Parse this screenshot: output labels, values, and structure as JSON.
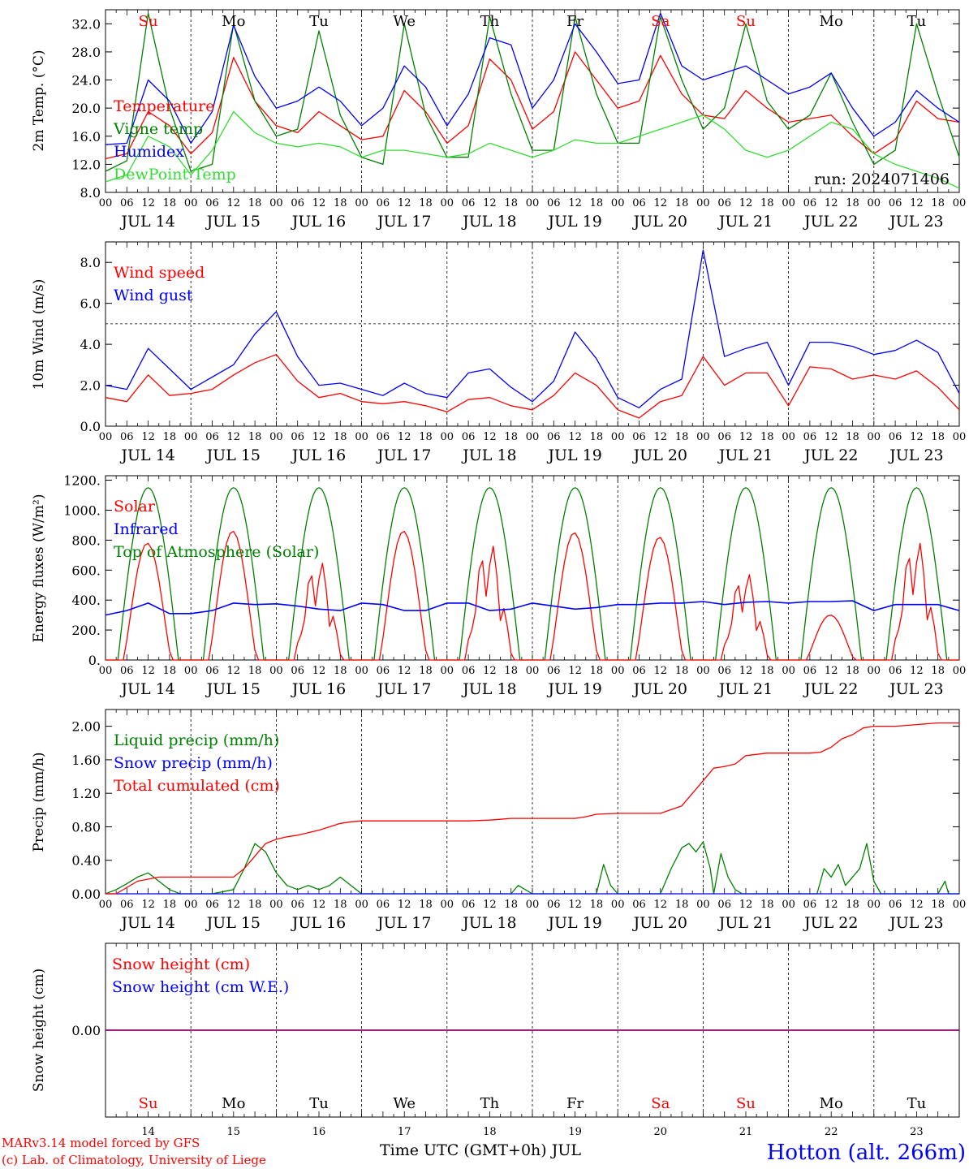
{
  "station": "Hotton (alt. 266m)",
  "credits": [
    "MARv3.14 model forced by GFS",
    "(c) Lab. of Climatology, University of Liege"
  ],
  "run_label": "run: 2024071406",
  "x_axis": {
    "dates": [
      "JUL 14",
      "JUL 15",
      "JUL 16",
      "JUL 17",
      "JUL 18",
      "JUL 19",
      "JUL 20",
      "JUL 21",
      "JUL 22",
      "JUL 23"
    ],
    "hour_ticks": [
      "00",
      "06",
      "12",
      "18"
    ],
    "last_tick": "00",
    "weekdays": [
      "Su",
      "Mo",
      "Tu",
      "We",
      "Th",
      "Fr",
      "Sa",
      "Su",
      "Mo",
      "Tu"
    ],
    "weekend_flags": [
      true,
      false,
      false,
      false,
      false,
      false,
      true,
      true,
      false,
      false
    ],
    "day_numbers": [
      "14",
      "15",
      "16",
      "17",
      "18",
      "19",
      "20",
      "21",
      "22",
      "23"
    ],
    "title": "Time UTC (GMT+0h) JUL"
  },
  "colors": {
    "red": "#ff0000",
    "green": "#008000",
    "blue": "#0000ff",
    "lightgreen": "#33dd33",
    "purple": "#800080",
    "grid": "#000000"
  },
  "chart_data": [
    {
      "type": "line",
      "ylabel": "2m Temp. (°C)",
      "ylim": [
        8,
        34
      ],
      "yticks": [
        "8.0",
        "12.0",
        "16.0",
        "20.0",
        "24.0",
        "28.0",
        "32.0"
      ],
      "ytick_values": [
        8,
        12,
        16,
        20,
        24,
        28,
        32
      ],
      "x_hours": [
        0,
        6,
        12,
        18,
        24,
        30,
        36,
        42,
        48,
        54,
        60,
        66,
        72,
        78,
        84,
        90,
        96,
        102,
        108,
        114,
        120,
        126,
        132,
        138,
        144,
        150,
        156,
        162,
        168,
        174,
        180,
        186,
        192,
        198,
        204,
        210,
        216,
        222,
        228,
        234,
        240
      ],
      "series": [
        {
          "name": "Temperature",
          "color": "red",
          "values": [
            12.8,
            13.5,
            19.5,
            17.5,
            13.5,
            16.5,
            27.2,
            21,
            17.5,
            16.5,
            19.5,
            17.5,
            15.5,
            16,
            22.5,
            19.5,
            15,
            17.5,
            27,
            24,
            17,
            19.5,
            28,
            24,
            20,
            21,
            27.5,
            22,
            19,
            18.5,
            22.5,
            20,
            18,
            18.5,
            19,
            16,
            13.5,
            15.5,
            21,
            18.5,
            18
          ]
        },
        {
          "name": "Vigne temp",
          "color": "green",
          "values": [
            11,
            12.5,
            33.5,
            20,
            11,
            12,
            32,
            21,
            16,
            17,
            31,
            19,
            13,
            12,
            32,
            19,
            13,
            13,
            33,
            22,
            14,
            14,
            33,
            22,
            15,
            15,
            33,
            24,
            17,
            20,
            32,
            21,
            17,
            19,
            25,
            18,
            12,
            14,
            32,
            22,
            13
          ]
        },
        {
          "name": "Humidex",
          "color": "blue",
          "values": [
            14.8,
            15,
            24,
            21,
            15,
            19.5,
            31.8,
            24.5,
            20,
            21,
            23,
            21,
            17.5,
            20,
            26,
            23,
            17.5,
            22,
            30,
            29,
            20,
            24,
            32,
            28,
            23.5,
            24,
            33.5,
            26,
            24,
            25,
            26,
            24,
            22,
            23,
            25,
            20,
            16,
            18,
            22.5,
            20,
            18
          ]
        },
        {
          "name": "DewPoint Temp",
          "color": "lightgreen",
          "values": [
            9.5,
            10.5,
            16,
            14.5,
            10.5,
            14,
            19.5,
            16.5,
            15,
            14.5,
            15,
            14.5,
            13,
            14,
            14,
            13.5,
            13,
            13.5,
            15,
            14,
            13,
            14,
            15.5,
            15,
            15,
            16,
            17,
            18,
            19,
            17,
            14,
            13,
            14,
            16,
            18,
            17,
            13.5,
            12,
            11,
            10,
            8.6
          ]
        }
      ],
      "annotation": "run: 2024071406"
    },
    {
      "type": "line",
      "ylabel": "10m Wind (m/s)",
      "ylim": [
        0,
        9
      ],
      "yticks": [
        "0.0",
        "2.0",
        "4.0",
        "6.0",
        "8.0"
      ],
      "ytick_values": [
        0,
        2,
        4,
        6,
        8
      ],
      "reference_line": 5,
      "x_hours": [
        0,
        6,
        12,
        18,
        24,
        30,
        36,
        42,
        48,
        54,
        60,
        66,
        72,
        78,
        84,
        90,
        96,
        102,
        108,
        114,
        120,
        126,
        132,
        138,
        144,
        150,
        156,
        162,
        168,
        174,
        180,
        186,
        192,
        198,
        204,
        210,
        216,
        222,
        228,
        234,
        240
      ],
      "series": [
        {
          "name": "Wind speed",
          "color": "red",
          "values": [
            1.4,
            1.2,
            2.5,
            1.5,
            1.6,
            1.8,
            2.5,
            3.1,
            3.5,
            2.2,
            1.4,
            1.6,
            1.2,
            1.1,
            1.2,
            1.0,
            0.7,
            1.3,
            1.4,
            1.0,
            0.8,
            1.5,
            2.6,
            2.0,
            0.8,
            0.4,
            1.2,
            1.5,
            3.4,
            2.0,
            2.6,
            2.6,
            1.0,
            2.9,
            2.8,
            2.3,
            2.5,
            2.3,
            2.7,
            1.9,
            0.8
          ]
        },
        {
          "name": "Wind gust",
          "color": "blue",
          "values": [
            2.0,
            1.8,
            3.8,
            2.8,
            1.8,
            2.4,
            3.0,
            4.5,
            5.6,
            3.4,
            2.0,
            2.1,
            1.8,
            1.5,
            2.1,
            1.6,
            1.4,
            2.6,
            2.8,
            1.9,
            1.2,
            2.2,
            4.6,
            3.3,
            1.4,
            0.9,
            1.8,
            2.3,
            8.6,
            3.4,
            3.8,
            4.1,
            2.0,
            4.1,
            4.1,
            3.9,
            3.5,
            3.7,
            4.2,
            3.6,
            1.6
          ]
        }
      ]
    },
    {
      "type": "line",
      "ylabel": "Energy fluxes (W/m²)",
      "ylim": [
        0,
        1230
      ],
      "yticks": [
        "0.",
        "200.",
        "400.",
        "600.",
        "800.",
        "1000.",
        "1200."
      ],
      "ytick_values": [
        0,
        200,
        400,
        600,
        800,
        1000,
        1200
      ],
      "solar_peaks": [
        780,
        860,
        680,
        860,
        800,
        850,
        820,
        600,
        300,
        820
      ],
      "infrared_values": [
        300,
        330,
        380,
        310,
        310,
        330,
        380,
        370,
        375,
        360,
        340,
        330,
        380,
        370,
        330,
        330,
        380,
        380,
        330,
        340,
        380,
        360,
        340,
        350,
        370,
        370,
        380,
        380,
        390,
        370,
        385,
        390,
        380,
        390,
        390,
        395,
        330,
        370,
        370,
        370,
        330
      ],
      "toa_peak": 1150,
      "toa_sunrise_hour": 3.5,
      "toa_sunset_hour": 20.5,
      "series": [
        {
          "name": "Solar",
          "color": "red"
        },
        {
          "name": "Infrared",
          "color": "blue"
        },
        {
          "name": "Top of Atmosphere (Solar)",
          "color": "green"
        }
      ]
    },
    {
      "type": "line",
      "ylabel": "Precip (mm/h)",
      "ylim": [
        0,
        2.2
      ],
      "yticks": [
        "0.00",
        "0.40",
        "0.80",
        "1.20",
        "1.60",
        "2.00"
      ],
      "ytick_values": [
        0,
        0.4,
        0.8,
        1.2,
        1.6,
        2.0
      ],
      "series": [
        {
          "name": "Liquid precip (mm/h)",
          "color": "green",
          "x": [
            0,
            3,
            6,
            9,
            12,
            15,
            18,
            21,
            24,
            30,
            36,
            39,
            42,
            45,
            48,
            51,
            54,
            57,
            60,
            63,
            66,
            69,
            72,
            75,
            78,
            96,
            114,
            116,
            118,
            120,
            138,
            140,
            142,
            144,
            156,
            159,
            162,
            164,
            166,
            168,
            170,
            171,
            173,
            175,
            177,
            179,
            181,
            183,
            200,
            202,
            204,
            206,
            208,
            210,
            212,
            214,
            216,
            218,
            220,
            222,
            234,
            236,
            237,
            240
          ],
          "values": [
            0,
            0.05,
            0.12,
            0.2,
            0.25,
            0.15,
            0.05,
            0,
            0,
            0,
            0.05,
            0.3,
            0.6,
            0.5,
            0.25,
            0.1,
            0.05,
            0.1,
            0.05,
            0.1,
            0.2,
            0.1,
            0,
            0,
            0,
            0,
            0,
            0.1,
            0.05,
            0,
            0,
            0.35,
            0.1,
            0,
            0,
            0.3,
            0.55,
            0.6,
            0.5,
            0.62,
            0.3,
            0,
            0.48,
            0.2,
            0.05,
            0,
            0,
            0,
            0,
            0.3,
            0.2,
            0.35,
            0.1,
            0.2,
            0.3,
            0.6,
            0.15,
            0,
            0,
            0,
            0,
            0.15,
            0,
            0
          ]
        },
        {
          "name": "Snow precip (mm/h)",
          "color": "blue",
          "x": [
            0,
            240
          ],
          "values": [
            0,
            0
          ]
        },
        {
          "name": "Total cumulated (cm)",
          "color": "red",
          "x": [
            0,
            3,
            9,
            15,
            21,
            27,
            33,
            36,
            39,
            42,
            45,
            48,
            51,
            54,
            57,
            60,
            63,
            66,
            69,
            72,
            75,
            78,
            84,
            90,
            96,
            102,
            108,
            111,
            114,
            120,
            126,
            132,
            135,
            138,
            144,
            150,
            156,
            162,
            165,
            168,
            171,
            174,
            177,
            180,
            186,
            192,
            198,
            201,
            204,
            207,
            210,
            213,
            216,
            222,
            228,
            234,
            240
          ],
          "values": [
            0,
            0,
            0.15,
            0.2,
            0.2,
            0.2,
            0.2,
            0.2,
            0.3,
            0.45,
            0.6,
            0.65,
            0.68,
            0.7,
            0.73,
            0.76,
            0.8,
            0.84,
            0.86,
            0.87,
            0.87,
            0.87,
            0.87,
            0.87,
            0.87,
            0.87,
            0.88,
            0.89,
            0.9,
            0.9,
            0.9,
            0.9,
            0.92,
            0.95,
            0.96,
            0.96,
            0.96,
            1.05,
            1.2,
            1.35,
            1.5,
            1.52,
            1.55,
            1.65,
            1.68,
            1.68,
            1.68,
            1.69,
            1.75,
            1.85,
            1.9,
            1.98,
            2.0,
            2.0,
            2.02,
            2.04,
            2.04
          ]
        }
      ]
    },
    {
      "type": "line",
      "ylabel": "Snow height (cm)",
      "ylim": [
        -1,
        1
      ],
      "yticks": [
        "0.00"
      ],
      "ytick_values": [
        0
      ],
      "series": [
        {
          "name": "Snow height (cm)",
          "color": "red",
          "x": [
            0,
            240
          ],
          "values": [
            0,
            0
          ]
        },
        {
          "name": "Snow height (cm W.E.)",
          "color": "blue",
          "x": [
            0,
            240
          ],
          "values": [
            0,
            0
          ]
        }
      ]
    }
  ]
}
